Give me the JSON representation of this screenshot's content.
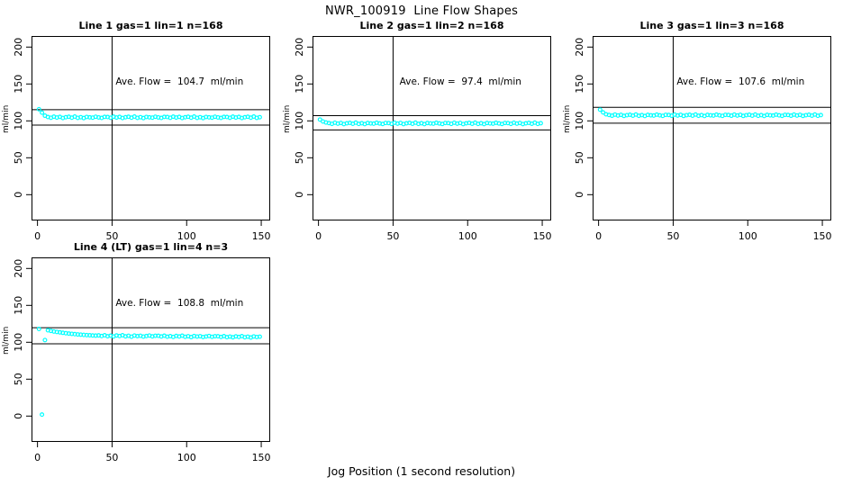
{
  "title": "NWR_100919  Line Flow Shapes",
  "xlabel": "Jog Position (1 second resolution)",
  "colors": {
    "marker": "#00FFFF",
    "axis": "#000000",
    "background": "#FFFFFF"
  },
  "chart_data": [
    {
      "type": "scatter",
      "title": "Line 1 gas=1 lin=1 n=168",
      "annotation": "Ave. Flow =  104.7  ml/min",
      "ave_flow": 104.7,
      "ylabel": "ml/min",
      "x_ticks": [
        0,
        50,
        100,
        150
      ],
      "y_ticks": [
        0,
        50,
        100,
        150,
        200
      ],
      "xlim": [
        -4,
        156
      ],
      "ylim": [
        -35,
        215
      ],
      "vline_x": 50,
      "hlines": [
        115.2,
        94.2
      ],
      "marker_color": "#00FFFF",
      "x_start": 1,
      "x_step": 2,
      "y_values": [
        115.8,
        111.2,
        107.0,
        105.2,
        104.2,
        105.7,
        104.5,
        105.4,
        103.9,
        104.9,
        105.5,
        104.3,
        105.8,
        104.1,
        105.0,
        103.8,
        105.3,
        104.8,
        104.4,
        105.6,
        104.7,
        104.0,
        105.4,
        105.2,
        104.2,
        105.7,
        104.5,
        105.4,
        103.9,
        104.9,
        105.5,
        104.3,
        105.8,
        104.1,
        105.0,
        103.8,
        105.3,
        104.8,
        104.4,
        105.6,
        104.7,
        104.0,
        105.4,
        105.2,
        104.2,
        105.7,
        104.5,
        105.4,
        103.9,
        104.9,
        105.5,
        104.3,
        105.8,
        104.1,
        105.0,
        103.8,
        105.3,
        104.8,
        104.4,
        105.6,
        104.7,
        104.0,
        105.4,
        105.2,
        104.2,
        105.7,
        104.5,
        105.4,
        103.9,
        104.9,
        105.5,
        104.3,
        105.8,
        104.1,
        105.0
      ]
    },
    {
      "type": "scatter",
      "title": "Line 2 gas=1 lin=2 n=168",
      "annotation": "Ave. Flow =  97.4  ml/min",
      "ave_flow": 97.4,
      "ylabel": "ml/min",
      "x_ticks": [
        0,
        50,
        100,
        150
      ],
      "y_ticks": [
        0,
        50,
        100,
        150,
        200
      ],
      "xlim": [
        -4,
        156
      ],
      "ylim": [
        -35,
        215
      ],
      "vline_x": 50,
      "hlines": [
        107.1,
        87.7
      ],
      "marker_color": "#00FFFF",
      "x_start": 1,
      "x_step": 2,
      "y_values": [
        101.8,
        99.2,
        97.8,
        97.0,
        96.0,
        97.5,
        96.3,
        97.2,
        95.7,
        96.7,
        97.3,
        96.1,
        97.6,
        95.9,
        96.8,
        95.6,
        97.1,
        96.6,
        96.2,
        97.4,
        96.5,
        95.8,
        97.2,
        97.0,
        96.0,
        97.5,
        96.3,
        97.2,
        95.7,
        96.7,
        97.3,
        96.1,
        97.6,
        95.9,
        96.8,
        95.6,
        97.1,
        96.6,
        96.2,
        97.4,
        96.5,
        95.8,
        97.2,
        97.0,
        96.0,
        97.5,
        96.3,
        97.2,
        95.7,
        96.7,
        97.3,
        96.1,
        97.6,
        95.9,
        96.8,
        95.6,
        97.1,
        96.6,
        96.2,
        97.4,
        96.5,
        95.8,
        97.2,
        97.0,
        96.0,
        97.5,
        96.3,
        97.2,
        95.7,
        96.7,
        97.3,
        96.1,
        97.6,
        95.9,
        96.8
      ]
    },
    {
      "type": "scatter",
      "title": "Line 3 gas=1 lin=3 n=168",
      "annotation": "Ave. Flow =  107.6  ml/min",
      "ave_flow": 107.6,
      "ylabel": "ml/min",
      "x_ticks": [
        0,
        50,
        100,
        150
      ],
      "y_ticks": [
        0,
        50,
        100,
        150,
        200
      ],
      "xlim": [
        -4,
        156
      ],
      "ylim": [
        -35,
        215
      ],
      "vline_x": 50,
      "hlines": [
        118.4,
        96.8
      ],
      "marker_color": "#00FFFF",
      "x_start": 1,
      "x_step": 2,
      "y_values": [
        115.2,
        111.5,
        108.9,
        108.0,
        107.0,
        108.5,
        107.3,
        108.2,
        106.7,
        107.7,
        108.3,
        107.1,
        108.6,
        106.9,
        107.8,
        106.6,
        108.1,
        107.6,
        107.2,
        108.4,
        107.5,
        106.8,
        108.2,
        108.0,
        107.0,
        108.5,
        107.3,
        108.2,
        106.7,
        107.7,
        108.3,
        107.1,
        108.6,
        106.9,
        107.8,
        106.6,
        108.1,
        107.6,
        107.2,
        108.4,
        107.5,
        106.8,
        108.2,
        108.0,
        107.0,
        108.5,
        107.3,
        108.2,
        106.7,
        107.7,
        108.3,
        107.1,
        108.6,
        106.9,
        107.8,
        106.6,
        108.1,
        107.6,
        107.2,
        108.4,
        107.5,
        106.8,
        108.2,
        108.0,
        107.0,
        108.5,
        107.3,
        108.2,
        106.7,
        107.7,
        108.3,
        107.1,
        108.6,
        106.9,
        107.8
      ]
    },
    {
      "type": "scatter",
      "title": "Line 4 (LT) gas=1 lin=4 n=3",
      "annotation": "Ave. Flow =  108.8  ml/min",
      "ave_flow": 108.8,
      "ylabel": "ml/min",
      "x_ticks": [
        0,
        50,
        100,
        150
      ],
      "y_ticks": [
        0,
        50,
        100,
        150,
        200
      ],
      "xlim": [
        -4,
        156
      ],
      "ylim": [
        -35,
        215
      ],
      "vline_x": 50,
      "hlines": [
        119.7,
        97.9
      ],
      "marker_color": "#00FFFF",
      "x_start": 1,
      "x_step": 2,
      "y_values": [
        118.0,
        2.0,
        103.0,
        116.2,
        115.4,
        114.6,
        114.0,
        113.4,
        112.8,
        112.3,
        111.8,
        111.4,
        111.0,
        110.6,
        110.3,
        110.0,
        109.7,
        109.5,
        109.2,
        109.0,
        109.3,
        108.4,
        109.5,
        108.1,
        108.9,
        107.9,
        109.2,
        108.4,
        109.5,
        108.0,
        108.8,
        107.6,
        109.1,
        108.3,
        108.8,
        107.7,
        108.4,
        109.1,
        108.0,
        108.8,
        108.7,
        107.8,
        108.9,
        107.5,
        108.3,
        107.3,
        108.6,
        107.8,
        108.9,
        107.4,
        108.2,
        107.0,
        108.5,
        107.7,
        108.2,
        107.1,
        107.8,
        108.5,
        107.4,
        108.2,
        108.1,
        107.2,
        108.3,
        106.9,
        107.7,
        106.7,
        108.0,
        107.2,
        108.3,
        106.8,
        107.6,
        106.4,
        107.9,
        107.1,
        107.6
      ]
    }
  ]
}
